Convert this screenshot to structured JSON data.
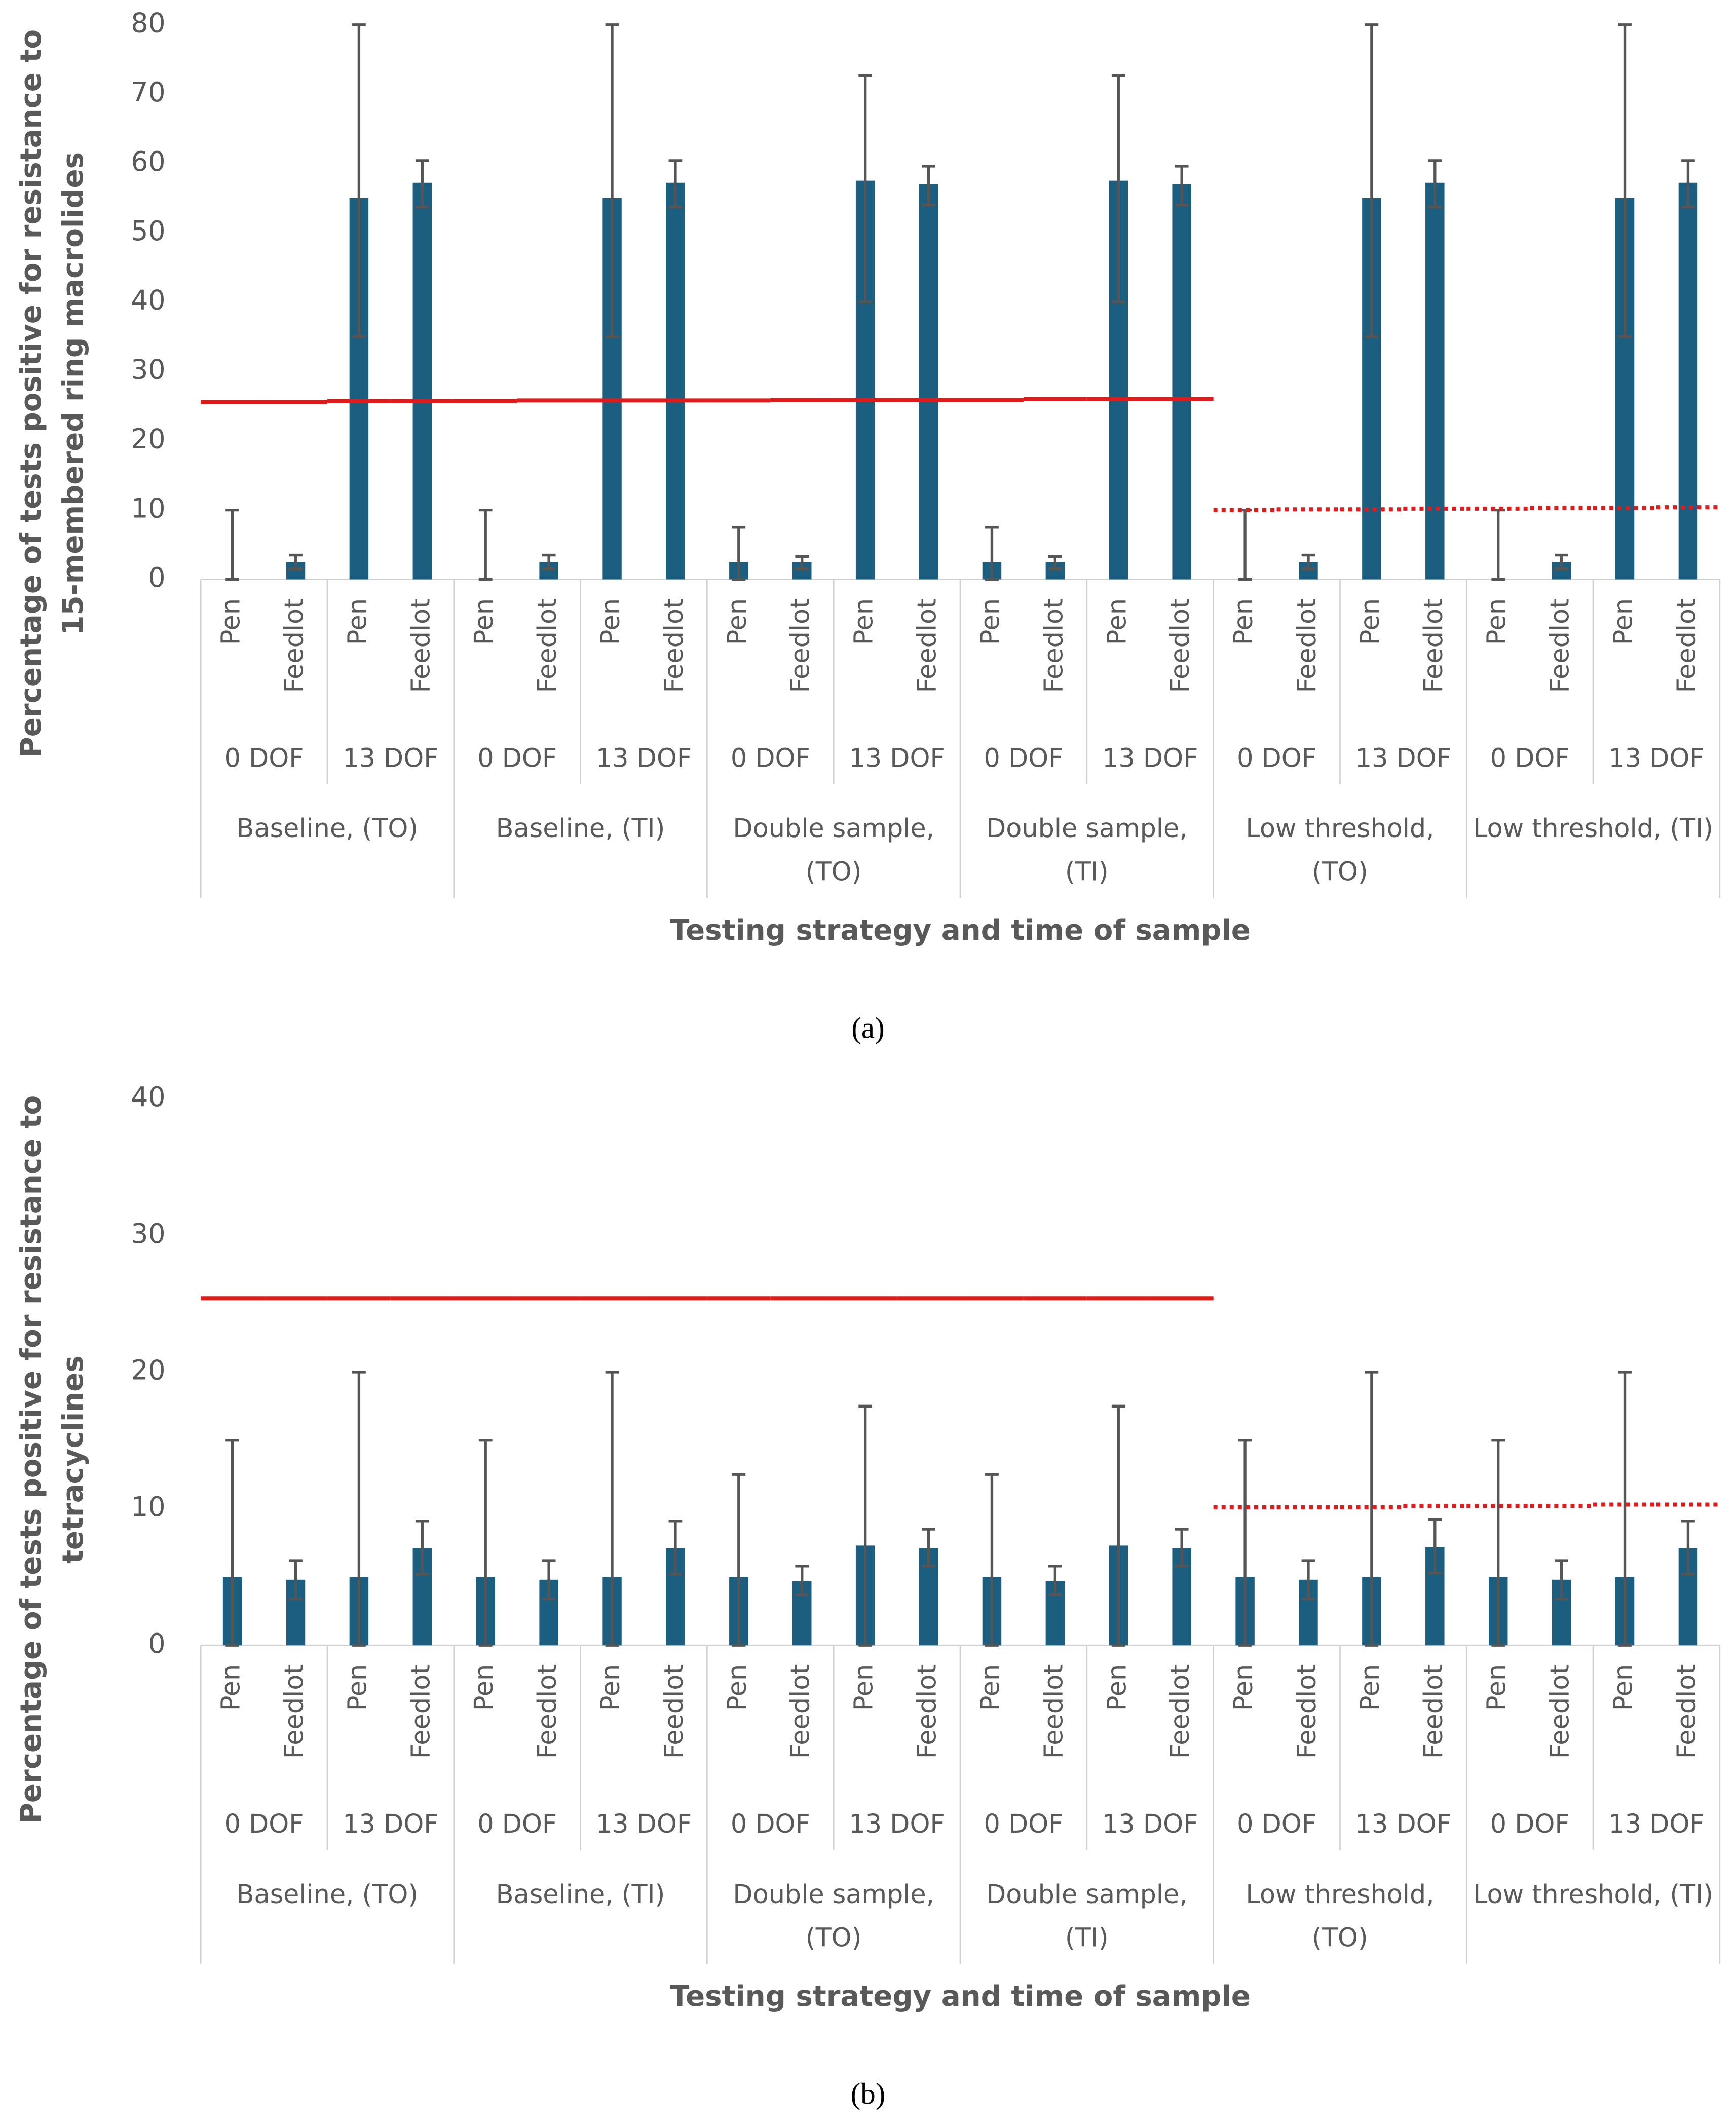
{
  "chart_data": [
    {
      "type": "bar",
      "caption": "(a)",
      "ylabel": [
        "Percentage of tests positive for resistance to",
        "15-membered ring macrolides"
      ],
      "xlabel": "Testing strategy and time of sample",
      "categories": [
        "Pen",
        "Feedlot",
        "Pen",
        "Feedlot",
        "Pen",
        "Feedlot",
        "Pen",
        "Feedlot",
        "Pen",
        "Feedlot",
        "Pen",
        "Feedlot",
        "Pen",
        "Feedlot",
        "Pen",
        "Feedlot",
        "Pen",
        "Feedlot",
        "Pen",
        "Feedlot",
        "Pen",
        "Feedlot",
        "Pen",
        "Feedlot"
      ],
      "category_groups": [
        "0 DOF",
        "13 DOF",
        "0 DOF",
        "13 DOF",
        "0 DOF",
        "13 DOF",
        "0 DOF",
        "13 DOF",
        "0 DOF",
        "13 DOF",
        "0 DOF",
        "13 DOF"
      ],
      "category_supergroups": [
        "Baseline, (TO)",
        "Baseline, (TI)",
        "Double sample, (TO)",
        "Double sample, (TI)",
        "Low threshold, (TO)",
        "Low threshold, (TI)"
      ],
      "values": [
        0,
        2.5,
        55,
        57.2,
        0,
        2.5,
        55,
        57.2,
        2.5,
        2.5,
        57.5,
        57,
        2.5,
        2.5,
        57.5,
        57,
        0,
        2.5,
        55,
        57.2,
        0,
        2.5,
        55,
        57.2
      ],
      "error_plus": [
        10,
        1,
        25,
        3.2,
        10,
        1,
        25,
        3.2,
        5,
        0.8,
        15.2,
        2.6,
        5,
        0.8,
        15.2,
        2.6,
        10,
        1,
        25,
        3.2,
        10,
        1,
        25,
        3.2
      ],
      "error_minus": [
        0,
        1,
        20,
        3.5,
        0,
        1,
        20,
        3.5,
        2.5,
        1,
        17.5,
        3,
        2.5,
        1,
        17.5,
        3,
        0,
        1,
        20,
        3.5,
        0,
        1,
        20,
        3.5
      ],
      "color": "#1b5e80",
      "error_color": "#555555",
      "ylim": [
        0,
        80
      ],
      "yticks": [
        0,
        10,
        20,
        30,
        40,
        50,
        60,
        70,
        80
      ],
      "lines": [
        {
          "color": "#e01b1b",
          "dashed": false,
          "values": [
            25.6,
            25.6,
            25.7,
            25.7,
            25.7,
            25.8,
            25.8,
            25.8,
            25.8,
            25.9,
            25.9,
            25.9,
            25.9,
            26,
            26,
            26,
            null,
            null,
            null,
            null,
            null,
            null,
            null,
            null
          ]
        },
        {
          "color": "#e01b1b",
          "dashed": true,
          "values": [
            null,
            null,
            null,
            null,
            null,
            null,
            null,
            null,
            null,
            null,
            null,
            null,
            null,
            null,
            null,
            null,
            10,
            10.1,
            10.1,
            10.2,
            10.2,
            10.3,
            10.3,
            10.4
          ]
        }
      ]
    },
    {
      "type": "bar",
      "caption": "(b)",
      "ylabel": [
        "Percentage of tests positive for resistance to",
        "tetracyclines"
      ],
      "xlabel": "Testing strategy and time of sample",
      "categories": [
        "Pen",
        "Feedlot",
        "Pen",
        "Feedlot",
        "Pen",
        "Feedlot",
        "Pen",
        "Feedlot",
        "Pen",
        "Feedlot",
        "Pen",
        "Feedlot",
        "Pen",
        "Feedlot",
        "Pen",
        "Feedlot",
        "Pen",
        "Feedlot",
        "Pen",
        "Feedlot",
        "Pen",
        "Feedlot",
        "Pen",
        "Feedlot"
      ],
      "category_groups": [
        "0 DOF",
        "13 DOF",
        "0 DOF",
        "13 DOF",
        "0 DOF",
        "13 DOF",
        "0 DOF",
        "13 DOF",
        "0 DOF",
        "13 DOF",
        "0 DOF",
        "13 DOF"
      ],
      "category_supergroups": [
        "Baseline, (TO)",
        "Baseline, (TI)",
        "Double sample, (TO)",
        "Double sample, (TI)",
        "Low threshold, (TO)",
        "Low threshold, (TI)"
      ],
      "values": [
        5,
        4.8,
        5,
        7.1,
        5,
        4.8,
        5,
        7.1,
        5,
        4.7,
        7.3,
        7.1,
        5,
        4.7,
        7.3,
        7.1,
        5,
        4.8,
        5,
        7.2,
        5,
        4.8,
        5,
        7.1
      ],
      "error_plus": [
        10,
        1.4,
        15,
        2,
        10,
        1.4,
        15,
        2,
        7.5,
        1.1,
        10.2,
        1.4,
        7.5,
        1.1,
        10.2,
        1.4,
        10,
        1.4,
        15,
        2,
        10,
        1.4,
        15,
        2
      ],
      "error_minus": [
        5,
        1.4,
        5,
        1.9,
        5,
        1.4,
        5,
        1.9,
        5,
        1,
        7.3,
        1.3,
        5,
        1,
        7.3,
        1.3,
        5,
        1.4,
        5,
        1.9,
        5,
        1.4,
        5,
        1.9
      ],
      "color": "#1b5e80",
      "error_color": "#555555",
      "ylim": [
        0,
        40
      ],
      "yticks": [
        0,
        10,
        20,
        30,
        40
      ],
      "lines": [
        {
          "color": "#e01b1b",
          "dashed": false,
          "values": [
            25.4,
            25.4,
            25.4,
            25.4,
            25.4,
            25.4,
            25.4,
            25.4,
            25.4,
            25.4,
            25.4,
            25.4,
            25.4,
            25.4,
            25.4,
            25.4,
            null,
            null,
            null,
            null,
            null,
            null,
            null,
            null
          ]
        },
        {
          "color": "#e01b1b",
          "dashed": true,
          "values": [
            null,
            null,
            null,
            null,
            null,
            null,
            null,
            null,
            null,
            null,
            null,
            null,
            null,
            null,
            null,
            null,
            10.1,
            10.1,
            10.1,
            10.2,
            10.2,
            10.2,
            10.3,
            10.3
          ]
        }
      ]
    }
  ]
}
